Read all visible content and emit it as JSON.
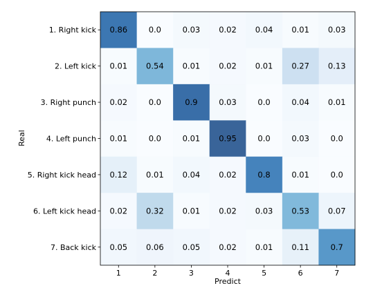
{
  "chart_data": {
    "type": "heatmap",
    "title": "",
    "xlabel": "Predict",
    "ylabel": "Real",
    "x_categories": [
      "1",
      "2",
      "3",
      "4",
      "5",
      "6",
      "7"
    ],
    "y_categories": [
      "1. Right kick",
      "2. Left kick",
      "3. Right punch",
      "4. Left punch",
      "5. Right kick head",
      "6. Left kick head",
      "7. Back kick"
    ],
    "values": [
      [
        "0.86",
        "0.0",
        "0.03",
        "0.02",
        "0.04",
        "0.01",
        "0.03"
      ],
      [
        "0.01",
        "0.54",
        "0.01",
        "0.02",
        "0.01",
        "0.27",
        "0.13"
      ],
      [
        "0.02",
        "0.0",
        "0.9",
        "0.03",
        "0.0",
        "0.04",
        "0.01"
      ],
      [
        "0.01",
        "0.0",
        "0.01",
        "0.95",
        "0.0",
        "0.03",
        "0.0"
      ],
      [
        "0.12",
        "0.01",
        "0.04",
        "0.02",
        "0.8",
        "0.01",
        "0.0"
      ],
      [
        "0.02",
        "0.32",
        "0.01",
        "0.02",
        "0.03",
        "0.53",
        "0.07"
      ],
      [
        "0.05",
        "0.06",
        "0.05",
        "0.02",
        "0.01",
        "0.11",
        "0.7"
      ]
    ],
    "colormap": "Blues",
    "vmin": 0,
    "vmax": 1,
    "colors": {
      "low": "#f7fbff",
      "high": "#08306b",
      "axis": "#000000"
    }
  }
}
